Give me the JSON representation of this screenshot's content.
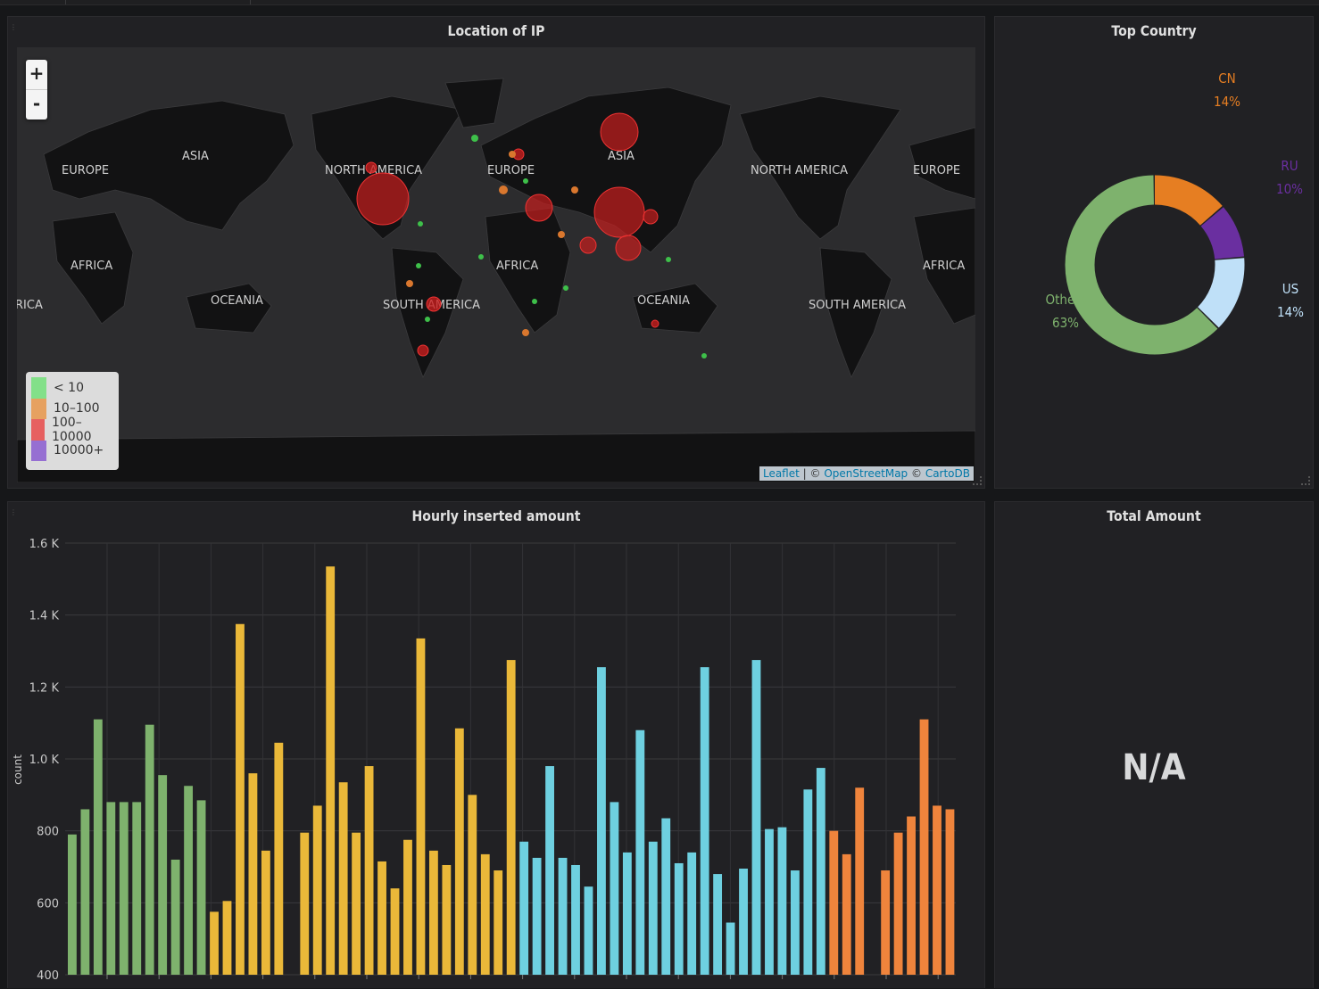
{
  "dashboard": {
    "map_panel": {
      "title": "Location of IP",
      "zoom_in": "+",
      "zoom_out": "-",
      "continent_labels": [
        {
          "name": "EUROPE"
        },
        {
          "name": "ASIA"
        },
        {
          "name": "AFRICA"
        },
        {
          "name": "OCEANIA"
        },
        {
          "name": "NORTH AMERICA"
        },
        {
          "name": "SOUTH AMERICA"
        },
        {
          "name": "EUROPE"
        },
        {
          "name": "ASIA"
        },
        {
          "name": "AFRICA"
        },
        {
          "name": "OCEANIA"
        },
        {
          "name": "NORTH AMERICA"
        },
        {
          "name": "EUROPE"
        },
        {
          "name": "AFRICA"
        },
        {
          "name": "SOUTH AMERICA"
        },
        {
          "name": "RICA"
        }
      ],
      "legend": [
        {
          "label": "< 10",
          "color": "#73e07a"
        },
        {
          "label": "10–100",
          "color": "#e8964a"
        },
        {
          "label": "100–10000",
          "color": "#e84a4a"
        },
        {
          "label": "10000+",
          "color": "#8a5cd0"
        }
      ],
      "attribution": {
        "leaflet": "Leaflet",
        "sep": " | © ",
        "osm": "OpenStreetMap",
        "copy": " © ",
        "carto": "CartoDB"
      }
    },
    "country_panel": {
      "title": "Top Country",
      "chart_data": {
        "type": "pie",
        "title": "Top Country",
        "slices": [
          {
            "name": "CN",
            "value": 14,
            "label": "14%",
            "color": "#e67e22"
          },
          {
            "name": "RU",
            "value": 10,
            "label": "10%",
            "color": "#6a2fa0"
          },
          {
            "name": "US",
            "value": 14,
            "label": "14%",
            "color": "#bfe0f8"
          },
          {
            "name": "Others",
            "value": 63,
            "label": "63%",
            "color": "#7eb26d"
          }
        ]
      }
    },
    "hourly_panel": {
      "title": "Hourly inserted amount",
      "chart_data": {
        "type": "bar",
        "title": "Hourly inserted amount",
        "ylabel": "count",
        "ylim": [
          400,
          1600
        ],
        "yticks": [
          "400",
          "600",
          "800",
          "1.0 K",
          "1.2 K",
          "1.4 K",
          "1.6 K"
        ],
        "grid": true,
        "x_tick_count": 17,
        "values": [
          790,
          860,
          1110,
          880,
          880,
          880,
          1095,
          955,
          720,
          925,
          885,
          575,
          605,
          1375,
          960,
          745,
          1045,
          null,
          795,
          870,
          1535,
          935,
          795,
          980,
          715,
          640,
          775,
          1335,
          745,
          705,
          1085,
          900,
          735,
          690,
          1275,
          770,
          725,
          980,
          725,
          705,
          645,
          1255,
          880,
          740,
          1080,
          770,
          835,
          710,
          740,
          1255,
          680,
          545,
          695,
          1275,
          805,
          810,
          690,
          915,
          975,
          800,
          735,
          920,
          null,
          690,
          795,
          840,
          1110,
          870,
          860
        ],
        "colors": [
          "#7eb26d",
          "#7eb26d",
          "#7eb26d",
          "#7eb26d",
          "#7eb26d",
          "#7eb26d",
          "#7eb26d",
          "#7eb26d",
          "#7eb26d",
          "#7eb26d",
          "#7eb26d",
          "#eab839",
          "#eab839",
          "#eab839",
          "#eab839",
          "#eab839",
          "#eab839",
          "#eab839",
          "#eab839",
          "#eab839",
          "#eab839",
          "#eab839",
          "#eab839",
          "#eab839",
          "#eab839",
          "#eab839",
          "#eab839",
          "#eab839",
          "#eab839",
          "#eab839",
          "#eab839",
          "#eab839",
          "#eab839",
          "#eab839",
          "#eab839",
          "#6ed0e0",
          "#6ed0e0",
          "#6ed0e0",
          "#6ed0e0",
          "#6ed0e0",
          "#6ed0e0",
          "#6ed0e0",
          "#6ed0e0",
          "#6ed0e0",
          "#6ed0e0",
          "#6ed0e0",
          "#6ed0e0",
          "#6ed0e0",
          "#6ed0e0",
          "#6ed0e0",
          "#6ed0e0",
          "#6ed0e0",
          "#6ed0e0",
          "#6ed0e0",
          "#6ed0e0",
          "#6ed0e0",
          "#6ed0e0",
          "#6ed0e0",
          "#6ed0e0",
          "#ef843c",
          "#ef843c",
          "#ef843c",
          "#ef843c",
          "#ef843c",
          "#ef843c",
          "#ef843c",
          "#ef843c",
          "#ef843c",
          "#ef843c"
        ]
      }
    },
    "total_panel": {
      "title": "Total Amount",
      "value": "N/A"
    }
  }
}
